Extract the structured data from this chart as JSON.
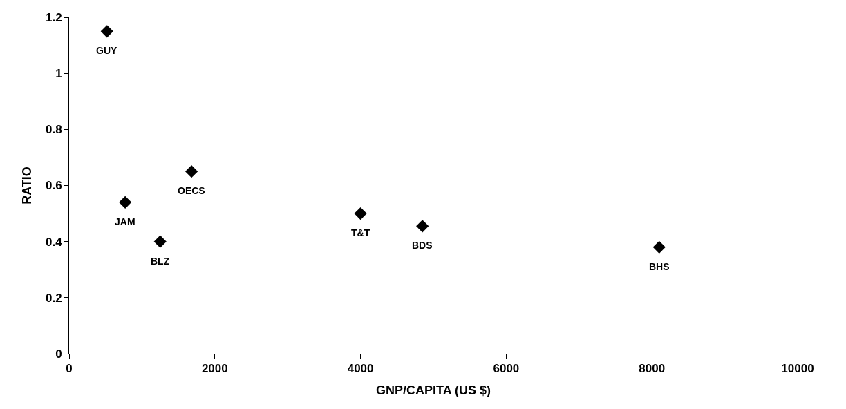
{
  "chart_data": {
    "type": "scatter",
    "xlabel": "GNP/CAPITA (US $)",
    "ylabel": "RATIO",
    "x": [
      520,
      770,
      1250,
      1680,
      4000,
      4850,
      8100
    ],
    "values": [
      1.15,
      0.54,
      0.4,
      0.65,
      0.5,
      0.455,
      0.38
    ],
    "color": "#000000",
    "marker": "diamond",
    "grid": false,
    "legend": false,
    "xlim": [
      0,
      10000
    ],
    "xticks": [
      0,
      2000,
      4000,
      6000,
      8000,
      10000
    ],
    "ylim": [
      0,
      1.2
    ],
    "yticks": [
      0,
      0.2,
      0.4,
      0.6,
      0.8,
      1,
      1.2
    ],
    "annotations": [
      {
        "text": "GUY",
        "x": 520,
        "y": 1.15
      },
      {
        "text": "JAM",
        "x": 770,
        "y": 0.54
      },
      {
        "text": "BLZ",
        "x": 1250,
        "y": 0.4
      },
      {
        "text": "OECS",
        "x": 1680,
        "y": 0.65
      },
      {
        "text": "T&T",
        "x": 4000,
        "y": 0.5
      },
      {
        "text": "BDS",
        "x": 4850,
        "y": 0.455
      },
      {
        "text": "BHS",
        "x": 8100,
        "y": 0.38
      }
    ]
  }
}
